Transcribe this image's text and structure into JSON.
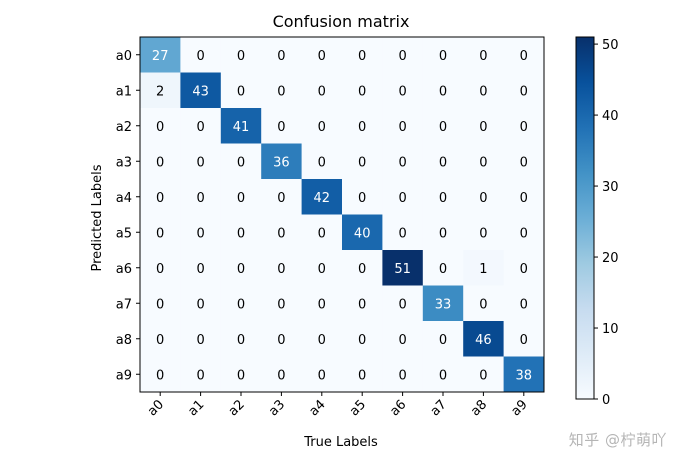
{
  "chart_data": {
    "type": "heatmap",
    "title": "Confusion matrix",
    "xlabel": "True Labels",
    "ylabel": "Predicted Labels",
    "x_categories": [
      "a0",
      "a1",
      "a2",
      "a3",
      "a4",
      "a5",
      "a6",
      "a7",
      "a8",
      "a9"
    ],
    "y_categories": [
      "a0",
      "a1",
      "a2",
      "a3",
      "a4",
      "a5",
      "a6",
      "a7",
      "a8",
      "a9"
    ],
    "matrix": [
      [
        27,
        0,
        0,
        0,
        0,
        0,
        0,
        0,
        0,
        0
      ],
      [
        2,
        43,
        0,
        0,
        0,
        0,
        0,
        0,
        0,
        0
      ],
      [
        0,
        0,
        41,
        0,
        0,
        0,
        0,
        0,
        0,
        0
      ],
      [
        0,
        0,
        0,
        36,
        0,
        0,
        0,
        0,
        0,
        0
      ],
      [
        0,
        0,
        0,
        0,
        42,
        0,
        0,
        0,
        0,
        0
      ],
      [
        0,
        0,
        0,
        0,
        0,
        40,
        0,
        0,
        0,
        0
      ],
      [
        0,
        0,
        0,
        0,
        0,
        0,
        51,
        0,
        1,
        0
      ],
      [
        0,
        0,
        0,
        0,
        0,
        0,
        0,
        33,
        0,
        0
      ],
      [
        0,
        0,
        0,
        0,
        0,
        0,
        0,
        0,
        46,
        0
      ],
      [
        0,
        0,
        0,
        0,
        0,
        0,
        0,
        0,
        0,
        38
      ]
    ],
    "colormap": "Blues",
    "colorbar": {
      "min": 0,
      "max": 51,
      "ticks": [
        0,
        10,
        20,
        30,
        40,
        50
      ]
    },
    "grid": false
  },
  "watermark": "知乎 @柠萌吖"
}
